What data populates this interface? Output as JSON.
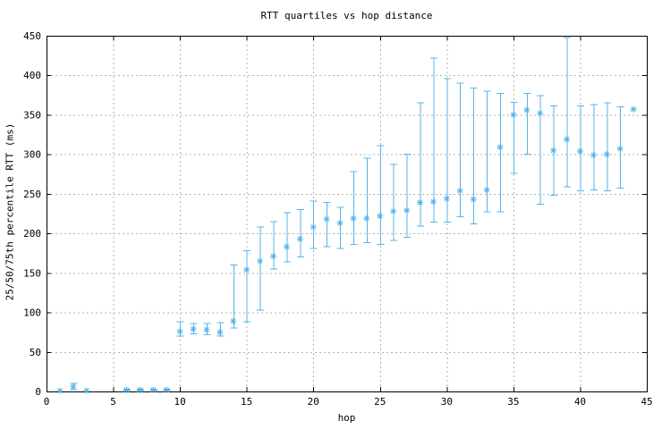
{
  "chart_data": {
    "type": "scatter",
    "style": "yerrorbars with median asterisk markers (gnuplot)",
    "title": "RTT quartiles vs hop distance",
    "xlabel": "hop",
    "ylabel": "25/50/75th percentile RTT (ms)",
    "xlim": [
      0,
      45
    ],
    "ylim": [
      0,
      450
    ],
    "xticks": [
      0,
      5,
      10,
      15,
      20,
      25,
      30,
      35,
      40,
      45
    ],
    "yticks": [
      0,
      50,
      100,
      150,
      200,
      250,
      300,
      350,
      400,
      450
    ],
    "grid": true,
    "legend": false,
    "colors": {
      "points": "#56b4e9",
      "grid": "#b3b3b3",
      "border": "#000000",
      "text": "#000000",
      "background": "#ffffff"
    },
    "series_name": "RTT quartiles (25th/median/75th) per hop",
    "points": [
      {
        "hop": 1,
        "q25": null,
        "median": 1,
        "q75": null
      },
      {
        "hop": 2,
        "q25": 2,
        "median": 6,
        "q75": 10
      },
      {
        "hop": 3,
        "q25": null,
        "median": 1,
        "q75": null
      },
      {
        "hop": 6,
        "q25": 1,
        "median": 2,
        "q75": 3
      },
      {
        "hop": 7,
        "q25": 1,
        "median": 2,
        "q75": 3
      },
      {
        "hop": 8,
        "q25": 1,
        "median": 2,
        "q75": 3
      },
      {
        "hop": 9,
        "q25": 1,
        "median": 2,
        "q75": 3
      },
      {
        "hop": 10,
        "q25": 70,
        "median": 76,
        "q75": 88
      },
      {
        "hop": 11,
        "q25": 73,
        "median": 79,
        "q75": 86
      },
      {
        "hop": 12,
        "q25": 72,
        "median": 78,
        "q75": 86
      },
      {
        "hop": 13,
        "q25": 70,
        "median": 75,
        "q75": 87
      },
      {
        "hop": 14,
        "q25": 80,
        "median": 89,
        "q75": 160
      },
      {
        "hop": 15,
        "q25": 88,
        "median": 154,
        "q75": 178
      },
      {
        "hop": 16,
        "q25": 103,
        "median": 165,
        "q75": 208
      },
      {
        "hop": 17,
        "q25": 155,
        "median": 171,
        "q75": 215
      },
      {
        "hop": 18,
        "q25": 164,
        "median": 183,
        "q75": 226
      },
      {
        "hop": 19,
        "q25": 170,
        "median": 193,
        "q75": 230
      },
      {
        "hop": 20,
        "q25": 181,
        "median": 208,
        "q75": 241
      },
      {
        "hop": 21,
        "q25": 183,
        "median": 218,
        "q75": 239
      },
      {
        "hop": 22,
        "q25": 181,
        "median": 213,
        "q75": 233
      },
      {
        "hop": 23,
        "q25": 186,
        "median": 219,
        "q75": 278
      },
      {
        "hop": 24,
        "q25": 188,
        "median": 219,
        "q75": 295
      },
      {
        "hop": 25,
        "q25": 186,
        "median": 222,
        "q75": 311
      },
      {
        "hop": 26,
        "q25": 191,
        "median": 228,
        "q75": 287
      },
      {
        "hop": 27,
        "q25": 195,
        "median": 229,
        "q75": 300
      },
      {
        "hop": 28,
        "q25": 209,
        "median": 239,
        "q75": 365
      },
      {
        "hop": 29,
        "q25": 214,
        "median": 240,
        "q75": 422
      },
      {
        "hop": 30,
        "q25": 214,
        "median": 244,
        "q75": 396
      },
      {
        "hop": 31,
        "q25": 221,
        "median": 254,
        "q75": 390
      },
      {
        "hop": 32,
        "q25": 212,
        "median": 243,
        "q75": 384
      },
      {
        "hop": 33,
        "q25": 227,
        "median": 255,
        "q75": 380
      },
      {
        "hop": 34,
        "q25": 227,
        "median": 309,
        "q75": 377
      },
      {
        "hop": 35,
        "q25": 276,
        "median": 350,
        "q75": 366
      },
      {
        "hop": 36,
        "q25": 300,
        "median": 356,
        "q75": 377
      },
      {
        "hop": 37,
        "q25": 237,
        "median": 352,
        "q75": 374
      },
      {
        "hop": 38,
        "q25": 248,
        "median": 305,
        "q75": 361
      },
      {
        "hop": 39,
        "q25": 259,
        "median": 319,
        "q75": 448
      },
      {
        "hop": 40,
        "q25": 254,
        "median": 304,
        "q75": 361
      },
      {
        "hop": 41,
        "q25": 255,
        "median": 299,
        "q75": 363
      },
      {
        "hop": 42,
        "q25": 254,
        "median": 300,
        "q75": 365
      },
      {
        "hop": 43,
        "q25": 257,
        "median": 307,
        "q75": 360
      },
      {
        "hop": 44,
        "q25": null,
        "median": 357,
        "q75": null
      }
    ]
  }
}
